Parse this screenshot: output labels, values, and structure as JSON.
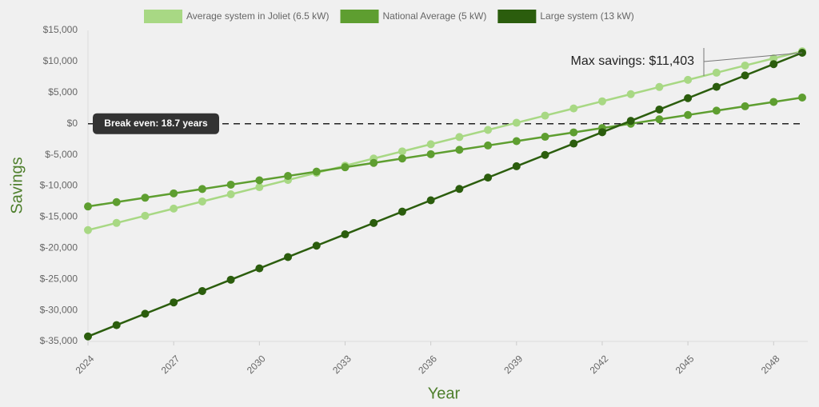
{
  "chart_data": {
    "type": "line",
    "x": [
      2024,
      2025,
      2026,
      2027,
      2028,
      2029,
      2030,
      2031,
      2032,
      2033,
      2034,
      2035,
      2036,
      2037,
      2038,
      2039,
      2040,
      2041,
      2042,
      2043,
      2044,
      2045,
      2046,
      2047,
      2048,
      2049
    ],
    "xlim": [
      2024,
      2049
    ],
    "xticks": [
      2024,
      2027,
      2030,
      2033,
      2036,
      2039,
      2042,
      2045,
      2048
    ],
    "ylim": [
      -35000,
      15000
    ],
    "yticks": [
      {
        "value": -35000,
        "label": "$-35,000"
      },
      {
        "value": -30000,
        "label": "$-30,000"
      },
      {
        "value": -25000,
        "label": "$-25,000"
      },
      {
        "value": -20000,
        "label": "$-20,000"
      },
      {
        "value": -15000,
        "label": "$-15,000"
      },
      {
        "value": -10000,
        "label": "$-10,000"
      },
      {
        "value": -5000,
        "label": "$-5,000"
      },
      {
        "value": 0,
        "label": "$0"
      },
      {
        "value": 5000,
        "label": "$5,000"
      },
      {
        "value": 10000,
        "label": "$10,000"
      },
      {
        "value": 15000,
        "label": "$15,000"
      }
    ],
    "x_label": "Year",
    "y_label": "Savings",
    "series": [
      {
        "name": "Average system in Joliet (6.5 kW)",
        "color": "#a8d884",
        "values": [
          -17100,
          -15950,
          -14800,
          -13650,
          -12500,
          -11350,
          -10200,
          -9050,
          -7900,
          -6750,
          -5600,
          -4450,
          -3300,
          -2150,
          -1000,
          150,
          1300,
          2450,
          3600,
          4750,
          5900,
          7050,
          8200,
          9350,
          10500,
          11650
        ]
      },
      {
        "name": "National Average (5 kW)",
        "color": "#5e9e30",
        "values": [
          -13300,
          -12600,
          -11900,
          -11200,
          -10500,
          -9800,
          -9100,
          -8400,
          -7700,
          -7000,
          -6300,
          -5600,
          -4900,
          -4200,
          -3500,
          -2800,
          -2100,
          -1400,
          -700,
          0,
          700,
          1400,
          2100,
          2800,
          3500,
          4200
        ]
      },
      {
        "name": "Large system (13  kW)",
        "color": "#2b5d0d",
        "values": [
          -34200,
          -32376,
          -30552,
          -28728,
          -26904,
          -25080,
          -23256,
          -21432,
          -19608,
          -17784,
          -15960,
          -14136,
          -12312,
          -10488,
          -8664,
          -6840,
          -5016,
          -3192,
          -1368,
          456,
          2280,
          4104,
          5928,
          7752,
          9576,
          11403
        ]
      }
    ],
    "annotations": {
      "break_even": "Break even: 18.7 years",
      "max_savings": "Max savings: $11,403"
    }
  }
}
